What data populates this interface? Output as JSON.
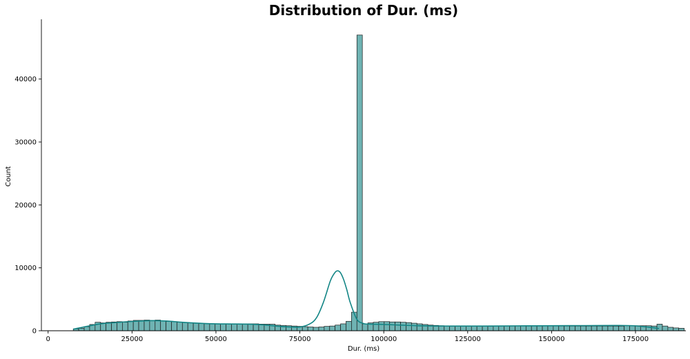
{
  "chart_data": {
    "type": "bar",
    "subtype": "histogram-with-kde",
    "title": "Distribution of Dur. (ms)",
    "xlabel": "Dur. (ms)",
    "ylabel": "Count",
    "xlim": [
      -2000,
      190000
    ],
    "ylim": [
      0,
      49500
    ],
    "xticks": [
      0,
      25000,
      50000,
      75000,
      100000,
      125000,
      150000,
      175000
    ],
    "xtick_labels": [
      "0",
      "25000",
      "50000",
      "75000",
      "100000",
      "125000",
      "150000",
      "175000"
    ],
    "yticks": [
      0,
      10000,
      20000,
      30000,
      40000
    ],
    "ytick_labels": [
      "0",
      "10000",
      "20000",
      "30000",
      "40000"
    ],
    "bin_start": 7500,
    "bin_width": 1625,
    "counts": [
      300,
      400,
      650,
      1000,
      1350,
      1250,
      1350,
      1400,
      1450,
      1350,
      1550,
      1650,
      1650,
      1700,
      1650,
      1700,
      1600,
      1500,
      1450,
      1350,
      1300,
      1250,
      1200,
      1150,
      1150,
      1100,
      1100,
      1100,
      1100,
      1100,
      1100,
      1100,
      1100,
      1100,
      1050,
      1050,
      1050,
      900,
      850,
      800,
      750,
      700,
      650,
      600,
      550,
      600,
      700,
      750,
      900,
      1100,
      1500,
      2950,
      47000,
      1100,
      1250,
      1350,
      1450,
      1450,
      1400,
      1400,
      1350,
      1300,
      1200,
      1100,
      1000,
      900,
      850,
      800,
      750,
      750,
      700,
      700,
      700,
      700,
      700,
      700,
      700,
      750,
      750,
      750,
      750,
      750,
      800,
      750,
      750,
      750,
      750,
      750,
      750,
      750,
      750,
      750,
      750,
      750,
      750,
      750,
      750,
      750,
      750,
      750,
      750,
      800,
      800,
      800,
      800,
      800,
      750,
      1050,
      750,
      550,
      450,
      400
    ],
    "kde_x": [
      7500,
      15000,
      20000,
      25000,
      30000,
      35000,
      40000,
      45000,
      50000,
      55000,
      60000,
      65000,
      70000,
      75000,
      78000,
      80000,
      82000,
      84000,
      85000,
      86000,
      87000,
      88000,
      89000,
      90000,
      92000,
      94000,
      96000,
      100000,
      110000,
      120000,
      130000,
      140000,
      150000,
      160000,
      170000,
      175000,
      180000,
      182000
    ],
    "kde_y": [
      250,
      1050,
      1300,
      1480,
      1600,
      1550,
      1350,
      1200,
      1100,
      1080,
      1050,
      900,
      650,
      600,
      1100,
      2100,
      4500,
      7800,
      8900,
      9500,
      9300,
      8200,
      6500,
      4500,
      1800,
      1150,
      1050,
      1000,
      800,
      750,
      750,
      780,
      800,
      820,
      850,
      780,
      500,
      350
    ],
    "color": "#6fb3b3",
    "kde_color": "#128585"
  }
}
